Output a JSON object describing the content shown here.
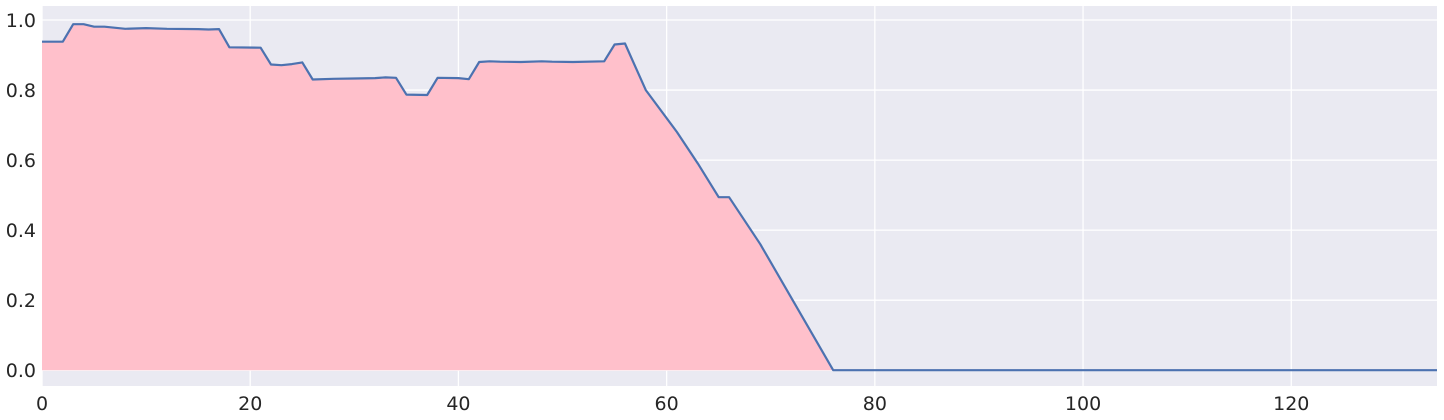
{
  "chart_data": {
    "type": "area",
    "title": "",
    "xlabel": "",
    "ylabel": "",
    "xlim": [
      0,
      134
    ],
    "ylim": [
      -0.045,
      1.04
    ],
    "grid": true,
    "x_ticks": [
      0,
      20,
      40,
      60,
      80,
      100,
      120
    ],
    "y_ticks": [
      0.0,
      0.2,
      0.4,
      0.6,
      0.8,
      1.0
    ],
    "x_tick_labels": [
      "0",
      "20",
      "40",
      "60",
      "80",
      "100",
      "120"
    ],
    "y_tick_labels": [
      "0.0",
      "0.2",
      "0.4",
      "0.6",
      "0.8",
      "1.0"
    ],
    "colors": {
      "fill": "#ffc0cb",
      "line": "#4c72b0",
      "plot_bg": "#eaeaf2",
      "grid": "#ffffff"
    },
    "series": [
      {
        "x": [
          0,
          2,
          3,
          4,
          5,
          6,
          8,
          10,
          12,
          15,
          16,
          17,
          18,
          21,
          22,
          23,
          24,
          25,
          26,
          28,
          30,
          32,
          33,
          34,
          35,
          37,
          38,
          40,
          41,
          42,
          43,
          44,
          46,
          48,
          49,
          51,
          54,
          55,
          56,
          58,
          61,
          63,
          65,
          66,
          69,
          76,
          80,
          134
        ],
        "y": [
          0.938,
          0.938,
          0.988,
          0.988,
          0.981,
          0.981,
          0.975,
          0.977,
          0.975,
          0.974,
          0.973,
          0.974,
          0.922,
          0.921,
          0.873,
          0.871,
          0.874,
          0.879,
          0.83,
          0.832,
          0.833,
          0.834,
          0.836,
          0.835,
          0.787,
          0.786,
          0.835,
          0.834,
          0.831,
          0.88,
          0.882,
          0.881,
          0.88,
          0.882,
          0.881,
          0.88,
          0.882,
          0.93,
          0.933,
          0.8,
          0.68,
          0.59,
          0.494,
          0.494,
          0.36,
          0.0,
          0.0,
          0.0
        ]
      }
    ]
  }
}
